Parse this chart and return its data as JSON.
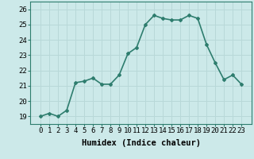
{
  "x": [
    0,
    1,
    2,
    3,
    4,
    5,
    6,
    7,
    8,
    9,
    10,
    11,
    12,
    13,
    14,
    15,
    16,
    17,
    18,
    19,
    20,
    21,
    22,
    23
  ],
  "y": [
    19.0,
    19.2,
    19.0,
    19.4,
    21.2,
    21.3,
    21.5,
    21.1,
    21.1,
    21.7,
    23.1,
    23.5,
    25.0,
    25.6,
    25.4,
    25.3,
    25.3,
    25.6,
    25.4,
    23.7,
    22.5,
    21.4,
    21.7,
    21.1
  ],
  "line_color": "#2e7d6e",
  "marker": "D",
  "marker_size": 2.0,
  "bg_color": "#cce9e9",
  "grid_color": "#b8d8d8",
  "xlabel": "Humidex (Indice chaleur)",
  "ylim": [
    18.5,
    26.5
  ],
  "yticks": [
    19,
    20,
    21,
    22,
    23,
    24,
    25,
    26
  ],
  "xticks": [
    0,
    1,
    2,
    3,
    4,
    5,
    6,
    7,
    8,
    9,
    10,
    11,
    12,
    13,
    14,
    15,
    16,
    17,
    18,
    19,
    20,
    21,
    22,
    23
  ],
  "xlabel_fontsize": 7.5,
  "tick_fontsize": 6.5,
  "line_width": 1.2
}
